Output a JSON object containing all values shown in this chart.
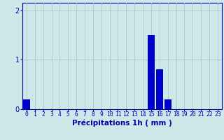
{
  "hours": [
    0,
    1,
    2,
    3,
    4,
    5,
    6,
    7,
    8,
    9,
    10,
    11,
    12,
    13,
    14,
    15,
    16,
    17,
    18,
    19,
    20,
    21,
    22,
    23
  ],
  "values": [
    0.2,
    0,
    0,
    0,
    0,
    0,
    0,
    0,
    0,
    0,
    0,
    0,
    0,
    0,
    0,
    1.5,
    0.8,
    0.2,
    0,
    0,
    0,
    0,
    0,
    0
  ],
  "bar_color": "#0000cc",
  "background_color": "#cce8e8",
  "grid_color": "#aac8c8",
  "axis_color": "#0000aa",
  "xlabel": "Précipitations 1h ( mm )",
  "xlabel_fontsize": 7.5,
  "tick_fontsize": 5.8,
  "ytick_fontsize": 7,
  "ylim": [
    0,
    2.15
  ],
  "yticks": [
    0,
    1,
    2
  ],
  "xlim": [
    -0.5,
    23.5
  ]
}
